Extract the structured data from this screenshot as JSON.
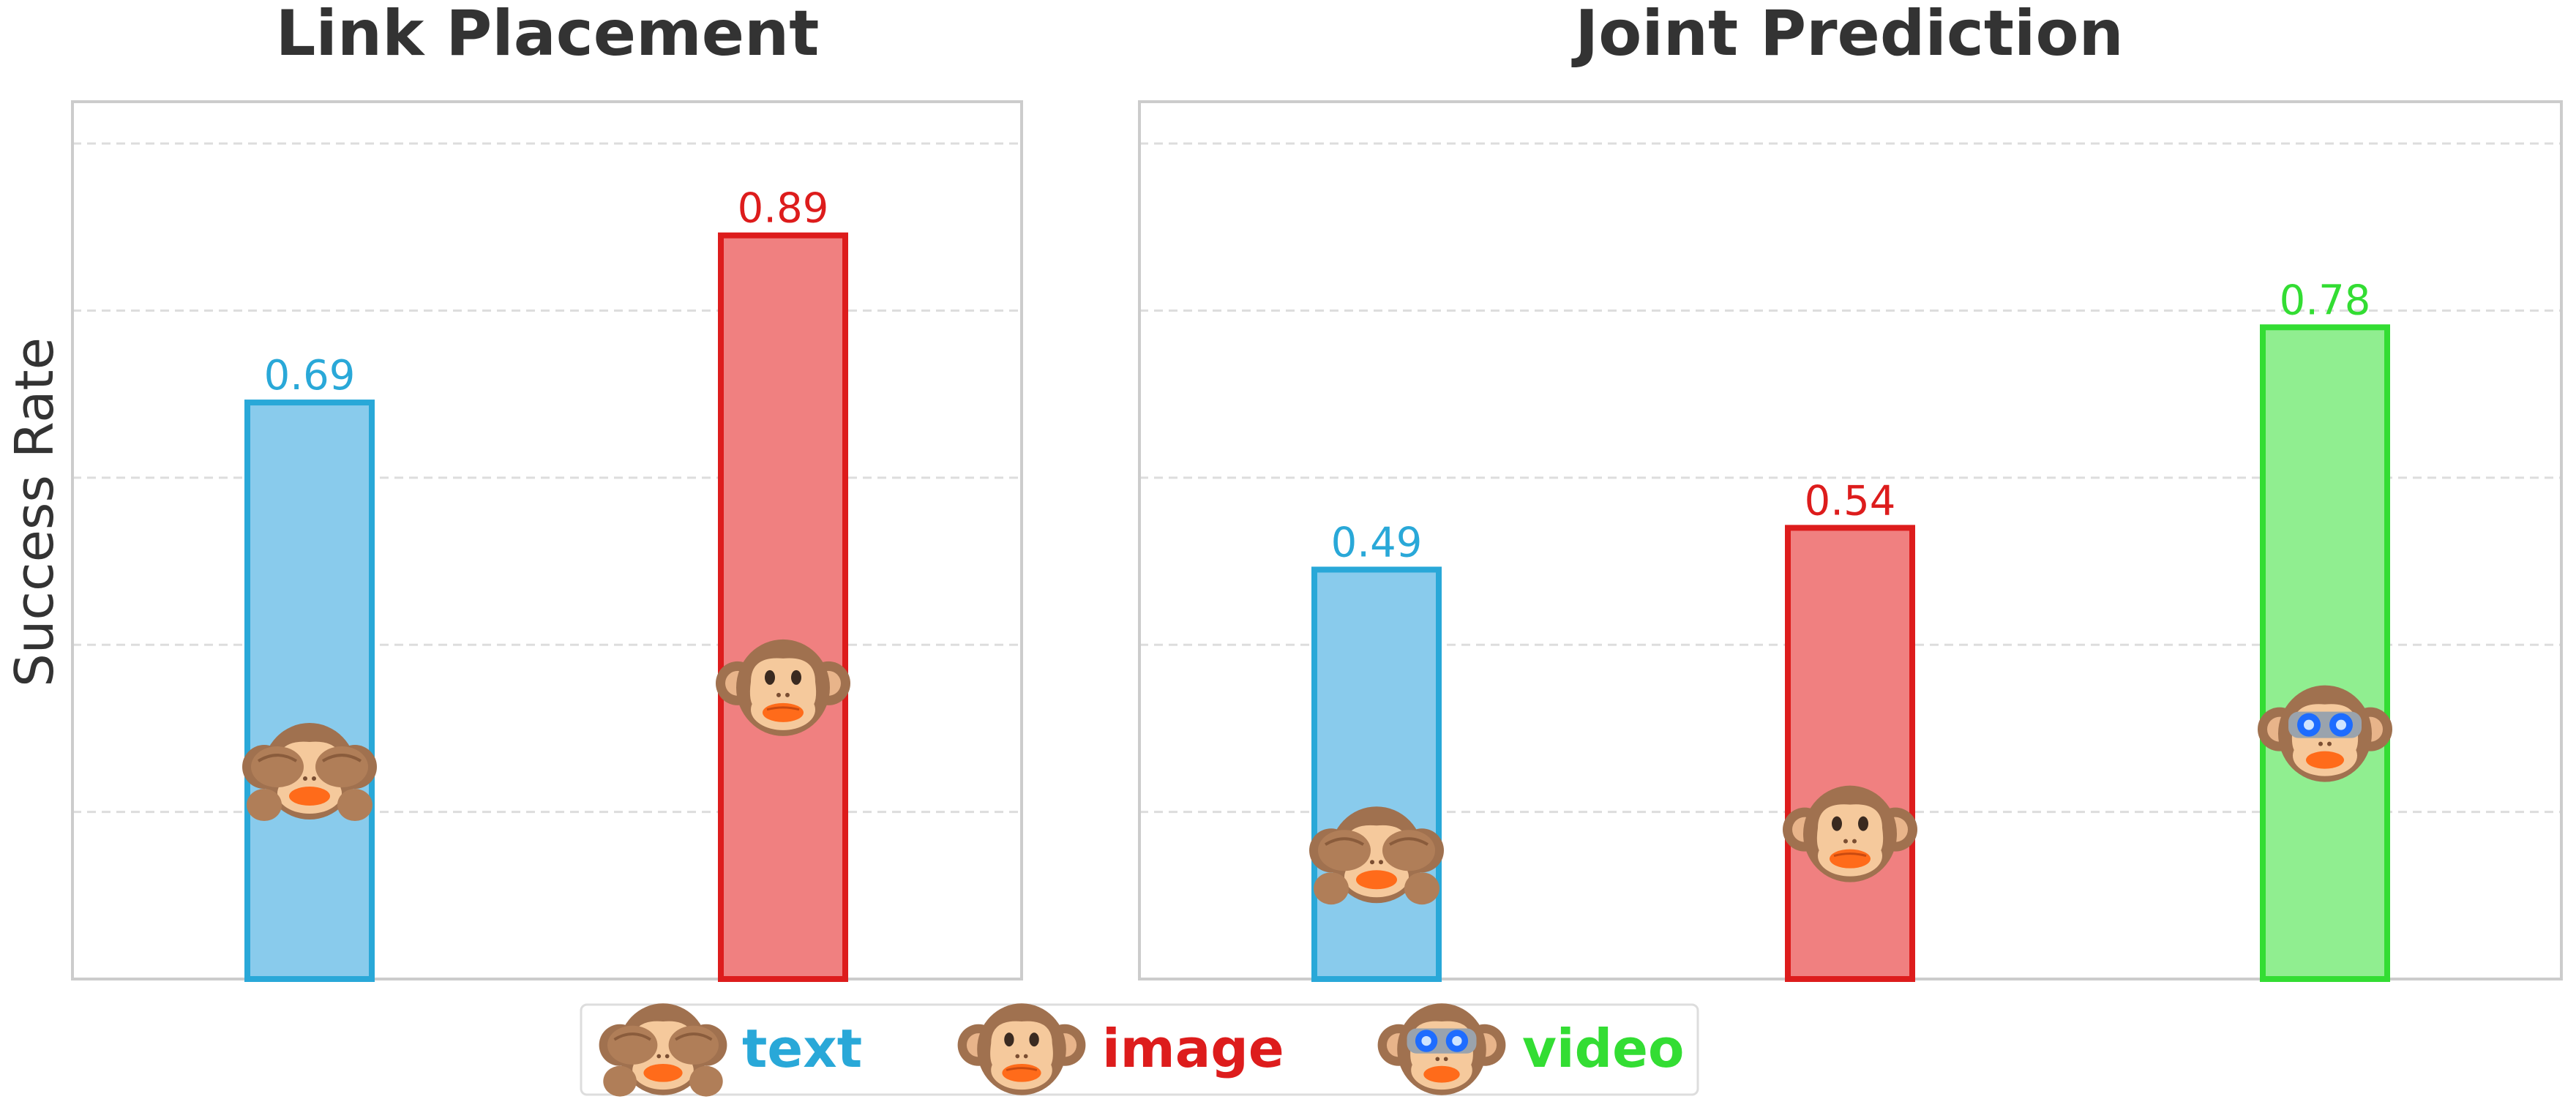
{
  "ylabel": "Success Rate",
  "chart_data": [
    {
      "type": "bar",
      "title": "Link Placement",
      "ylabel": "Success Rate",
      "ylim": [
        0,
        1.05
      ],
      "grid": true,
      "bars": [
        {
          "series": "text",
          "value": 0.69,
          "label": "0.69"
        },
        {
          "series": "image",
          "value": 0.89,
          "label": "0.89"
        }
      ]
    },
    {
      "type": "bar",
      "title": "Joint Prediction",
      "ylim": [
        0,
        1.05
      ],
      "grid": true,
      "bars": [
        {
          "series": "text",
          "value": 0.49,
          "label": "0.49"
        },
        {
          "series": "image",
          "value": 0.54,
          "label": "0.54"
        },
        {
          "series": "video",
          "value": 0.78,
          "label": "0.78"
        }
      ]
    }
  ],
  "legend": {
    "placement": "bottom-center",
    "items": [
      {
        "key": "text",
        "label": "text",
        "icon": "see-no-evil-monkey-icon",
        "color": "#29a8d8",
        "fill": "#89cbec"
      },
      {
        "key": "image",
        "label": "image",
        "icon": "monkey-face-icon",
        "color": "#dd1c1c",
        "fill": "#f08080"
      },
      {
        "key": "video",
        "label": "video",
        "icon": "monkey-with-goggles-icon",
        "color": "#33dd33",
        "fill": "#90ee90"
      }
    ]
  }
}
